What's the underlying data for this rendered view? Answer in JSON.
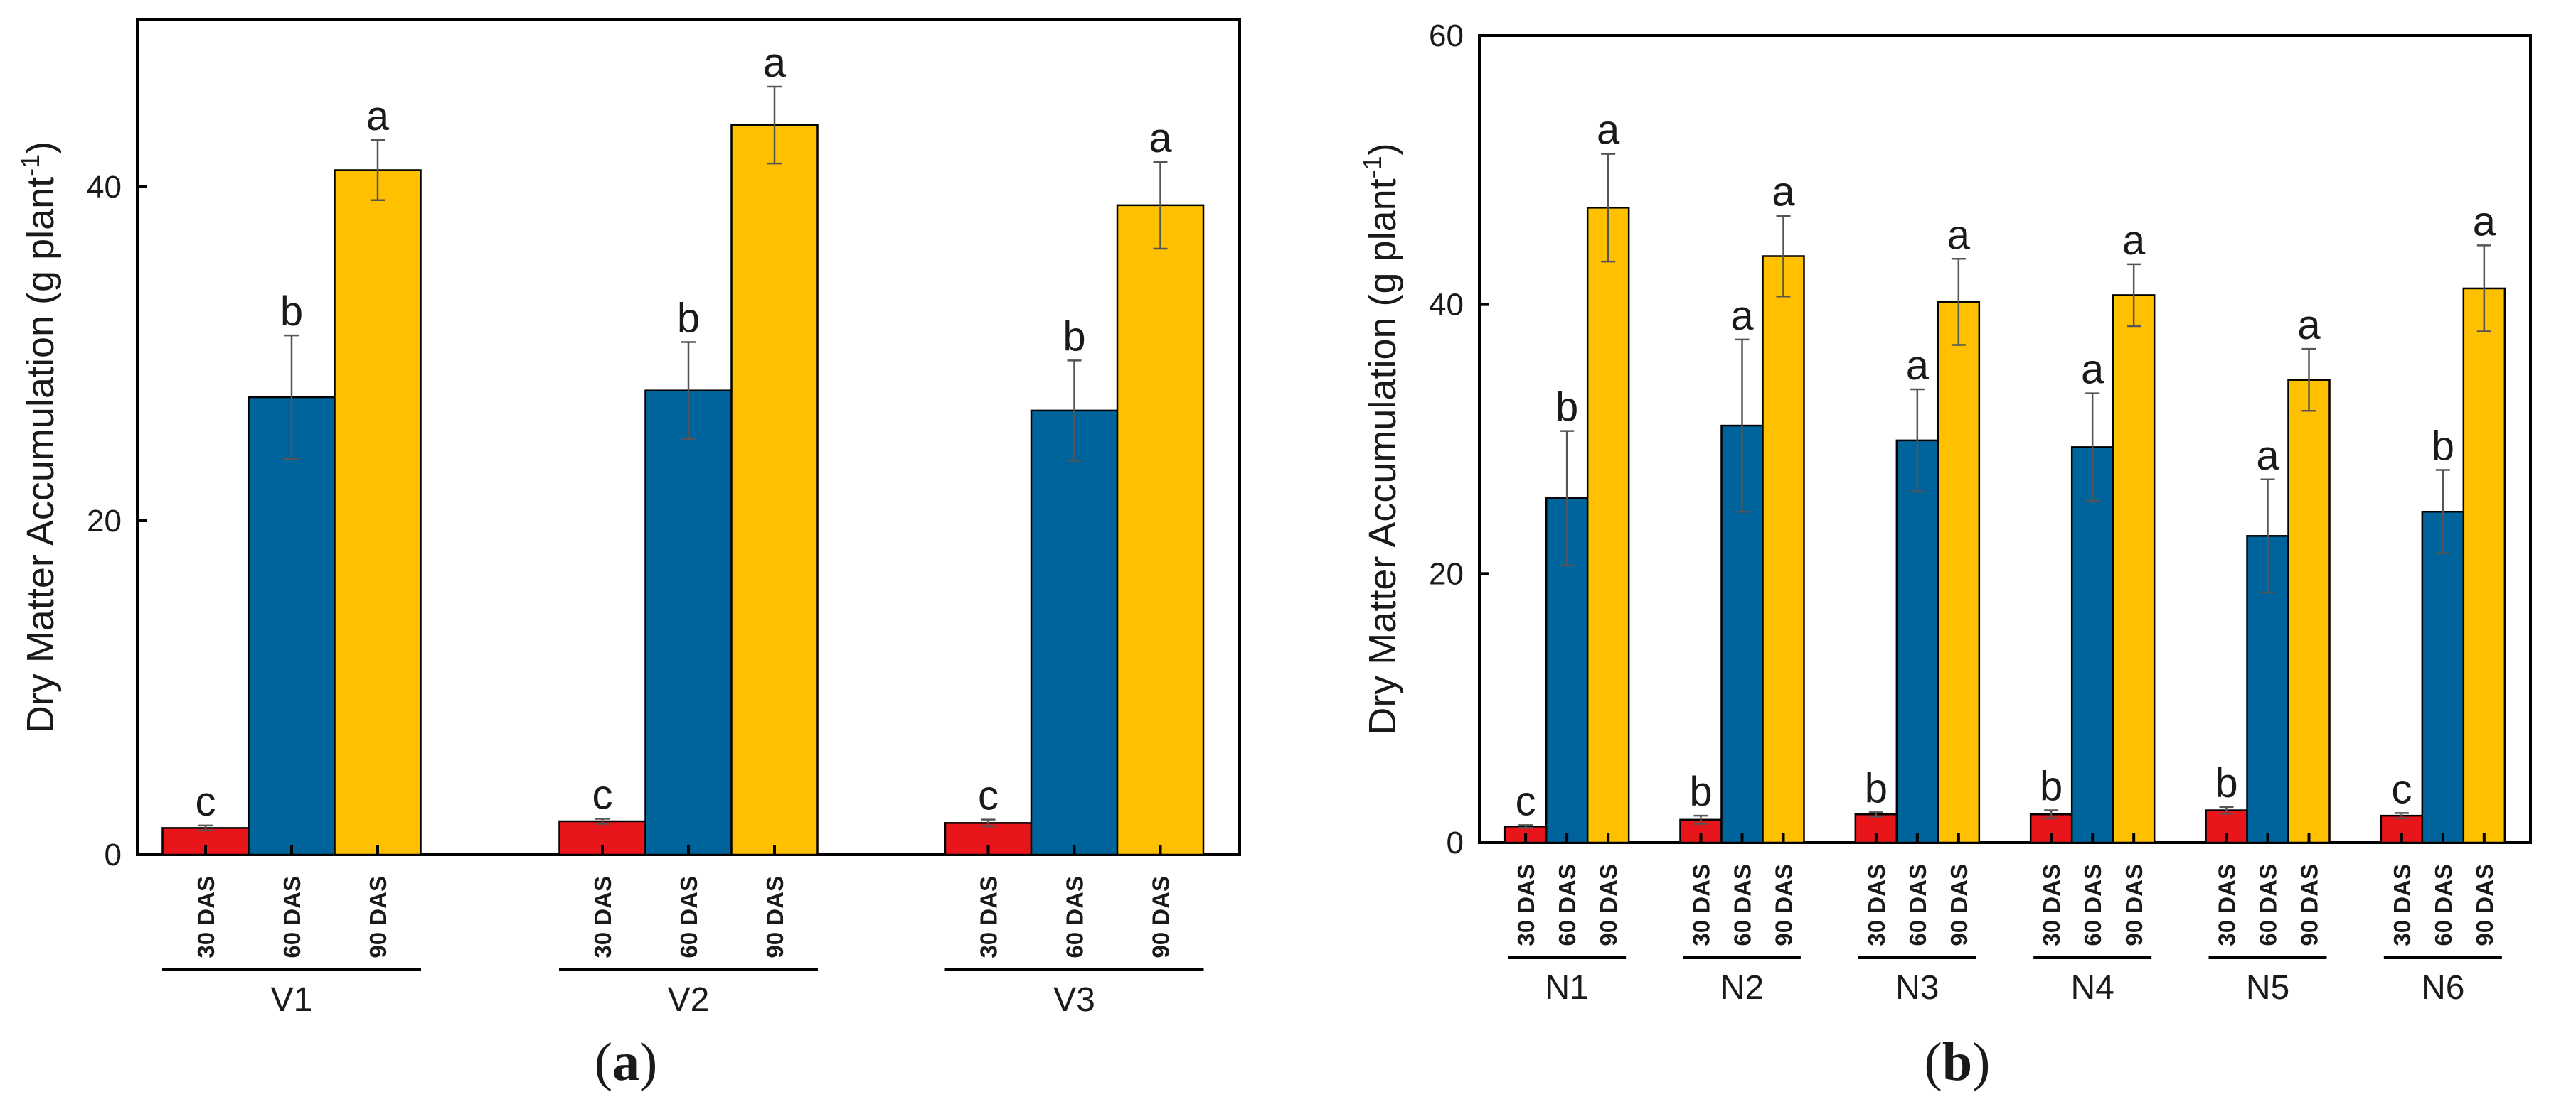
{
  "chart_data": [
    {
      "type": "bar",
      "panel": "a",
      "ylabel": "Dry Matter Accumulation (g plant⁻¹)",
      "xlabel": "",
      "ylim": [
        0,
        50
      ],
      "yticks": [
        0,
        20,
        40
      ],
      "groups": [
        "V1",
        "V2",
        "V3"
      ],
      "categories": [
        "30 DAS",
        "60 DAS",
        "90 DAS"
      ],
      "colors": [
        "#e8151b",
        "#00649c",
        "#ffc000"
      ],
      "values": [
        [
          1.6,
          27.4,
          41.0
        ],
        [
          2.0,
          27.8,
          43.7
        ],
        [
          1.9,
          26.6,
          38.9
        ]
      ],
      "errors": [
        [
          0.15,
          3.7,
          1.8
        ],
        [
          0.15,
          2.9,
          2.3
        ],
        [
          0.2,
          3.0,
          2.6
        ]
      ],
      "letters": [
        [
          "c",
          "b",
          "a"
        ],
        [
          "c",
          "b",
          "a"
        ],
        [
          "c",
          "b",
          "a"
        ]
      ]
    },
    {
      "type": "bar",
      "panel": "b",
      "ylabel": "Dry Matter Accumulation  (g plant⁻¹)",
      "xlabel": "",
      "ylim": [
        0,
        60
      ],
      "yticks": [
        0,
        20,
        40,
        60
      ],
      "groups": [
        "N1",
        "N2",
        "N3",
        "N4",
        "N5",
        "N6"
      ],
      "categories": [
        "30 DAS",
        "60 DAS",
        "90 DAS"
      ],
      "colors": [
        "#e8151b",
        "#00649c",
        "#ffc000"
      ],
      "values": [
        [
          1.2,
          25.6,
          47.2
        ],
        [
          1.7,
          31.0,
          43.6
        ],
        [
          2.1,
          29.9,
          40.2
        ],
        [
          2.1,
          29.4,
          40.7
        ],
        [
          2.4,
          22.8,
          34.4
        ],
        [
          2.0,
          24.6,
          41.2
        ]
      ],
      "errors": [
        [
          0.1,
          5.0,
          4.0
        ],
        [
          0.3,
          6.4,
          3.0
        ],
        [
          0.15,
          3.8,
          3.2
        ],
        [
          0.3,
          4.0,
          2.3
        ],
        [
          0.25,
          4.2,
          2.3
        ],
        [
          0.2,
          3.1,
          3.2
        ]
      ],
      "letters": [
        [
          "c",
          "b",
          "a"
        ],
        [
          "b",
          "a",
          "a"
        ],
        [
          "b",
          "a",
          "a"
        ],
        [
          "b",
          "a",
          "a"
        ],
        [
          "b",
          "a",
          "a"
        ],
        [
          "c",
          "b",
          "a"
        ]
      ]
    }
  ],
  "captions": {
    "a_letter": "a",
    "b_letter": "b"
  }
}
